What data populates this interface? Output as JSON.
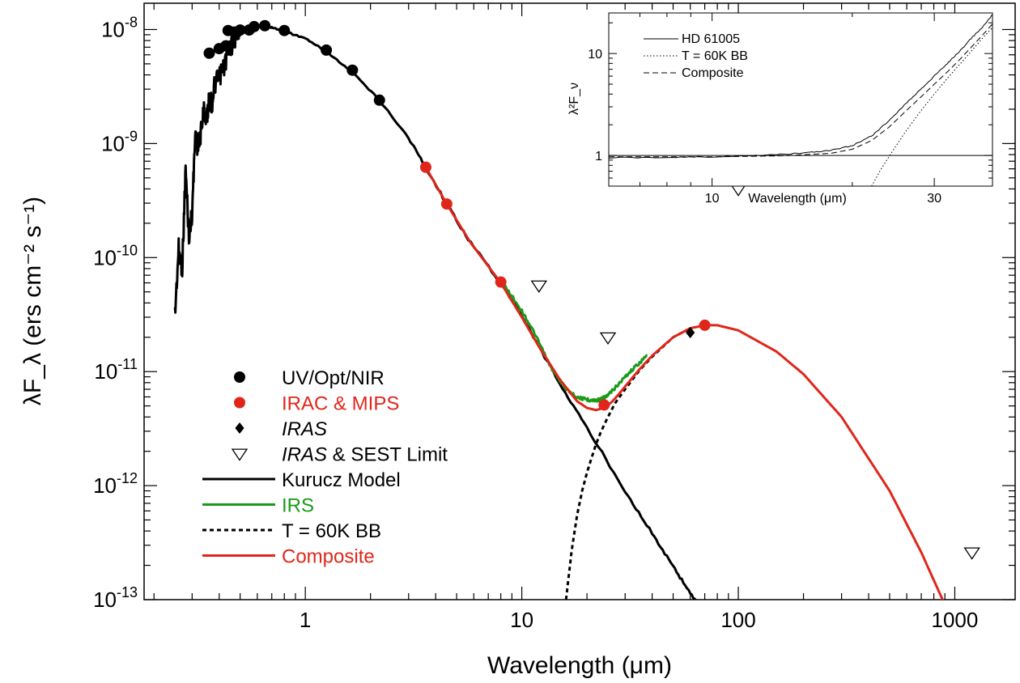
{
  "chart_data": [
    {
      "panel": "main",
      "type": "line",
      "xlabel": "Wavelength (μm)",
      "ylabel": "λF_λ (ers cm⁻² s⁻¹)",
      "xscale": "log",
      "yscale": "log",
      "xlim": [
        0.18,
        1900
      ],
      "ylim": [
        1e-13,
        1.7e-08
      ],
      "x_tick_values": [
        1,
        10,
        100,
        1000
      ],
      "x_tick_labels": [
        "1",
        "10",
        "100",
        "1000"
      ],
      "y_tick_values": [
        1e-13,
        1e-12,
        1e-11,
        1e-10,
        1e-09,
        1e-08
      ],
      "y_tick_labels": [
        {
          "base": "10",
          "exp": "-13"
        },
        {
          "base": "10",
          "exp": "-12"
        },
        {
          "base": "10",
          "exp": "-11"
        },
        {
          "base": "10",
          "exp": "-10"
        },
        {
          "base": "10",
          "exp": "-9"
        },
        {
          "base": "10",
          "exp": "-8"
        }
      ],
      "legend_position": "middle-left",
      "legend": [
        {
          "label": "UV/Opt/NIR",
          "marker": "circle",
          "color": "#000000"
        },
        {
          "label": "IRAC & MIPS",
          "marker": "circle",
          "color": "#e0261a"
        },
        {
          "label": "IRAS",
          "marker": "diamond",
          "color": "#000000",
          "italic": "IRAS"
        },
        {
          "label": "IRAS & SEST Limit",
          "marker": "triangle-down-open",
          "color": "#000000",
          "italic": "IRAS"
        },
        {
          "label": "Kurucz Model",
          "line": "solid",
          "color": "#000000"
        },
        {
          "label": "IRS",
          "line": "solid",
          "color": "#1a9a1a"
        },
        {
          "label": "T = 60K BB",
          "line": "dashed",
          "color": "#000000"
        },
        {
          "label": "Composite",
          "line": "solid",
          "color": "#e0261a"
        }
      ],
      "series": [
        {
          "name": "Kurucz Model",
          "style": "solid-noisy",
          "color": "#000000",
          "x": [
            0.25,
            0.26,
            0.27,
            0.28,
            0.29,
            0.3,
            0.31,
            0.32,
            0.33,
            0.34,
            0.35,
            0.36,
            0.37,
            0.38,
            0.4,
            0.42,
            0.44,
            0.46,
            0.48,
            0.5,
            0.55,
            0.6,
            0.65,
            0.7,
            0.8,
            1.0,
            1.25,
            1.65,
            2.2,
            3.0,
            3.6,
            4.5,
            5.8,
            8.0,
            10,
            15,
            20,
            30,
            40,
            50,
            60,
            70
          ],
          "y": [
            3.2e-11,
            1.2e-10,
            8e-11,
            6e-10,
            1.5e-10,
            2.5e-10,
            1.2e-09,
            9e-10,
            1.3e-09,
            2e-09,
            1.6e-09,
            2.5e-09,
            2.2e-09,
            3.2e-09,
            3.8e-09,
            4.6e-09,
            6.5e-09,
            7.5e-09,
            8.8e-09,
            9.8e-09,
            1.05e-08,
            1.08e-08,
            1.07e-08,
            1.04e-08,
            9.7e-09,
            8.3e-09,
            6.4e-09,
            4.2e-09,
            2.4e-09,
            1.12e-09,
            6.2e-10,
            2.95e-10,
            1.35e-10,
            6e-11,
            3.1e-11,
            7.8e-12,
            3.2e-12,
            9e-13,
            3.8e-13,
            1.95e-13,
            1.15e-13,
            7.3e-14
          ]
        },
        {
          "name": "IRS",
          "style": "solid-noisy",
          "color": "#1a9a1a",
          "x": [
            8,
            9,
            10,
            11,
            12,
            13,
            14,
            15,
            16,
            17,
            18,
            19,
            20,
            21,
            22,
            23,
            24,
            25,
            26,
            28,
            30,
            32,
            35,
            38
          ],
          "y": [
            6.2e-11,
            4.6e-11,
            3.4e-11,
            2.5e-11,
            1.8e-11,
            1.3e-11,
            1e-11,
            8.4e-12,
            7.1e-12,
            6.4e-12,
            6e-12,
            5.8e-12,
            5.7e-12,
            5.6e-12,
            5.6e-12,
            5.7e-12,
            5.9e-12,
            6.2e-12,
            6.7e-12,
            7.8e-12,
            9e-12,
            1.02e-11,
            1.2e-11,
            1.38e-11
          ]
        },
        {
          "name": "T = 60K BB",
          "style": "dashed",
          "color": "#000000",
          "x": [
            16,
            17,
            18,
            19,
            20,
            21,
            22,
            23,
            24,
            25,
            27,
            30,
            35,
            40,
            50,
            60
          ],
          "y": [
            1e-13,
            2.7e-13,
            5.5e-13,
            9e-13,
            1.3e-12,
            1.75e-12,
            2.3e-12,
            2.85e-12,
            3.4e-12,
            4e-12,
            5.3e-12,
            7e-12,
            1.03e-11,
            1.35e-11,
            2e-11,
            2.4e-11
          ]
        },
        {
          "name": "Composite",
          "style": "solid",
          "color": "#e0261a",
          "x": [
            3.6,
            4.5,
            5.8,
            8,
            10,
            12,
            15,
            18,
            20,
            22,
            24,
            26,
            28,
            30,
            35,
            40,
            50,
            60,
            70,
            80,
            100,
            150,
            200,
            300,
            500,
            700,
            900
          ],
          "y": [
            6.2e-10,
            2.95e-10,
            1.35e-10,
            6e-11,
            3e-11,
            1.65e-11,
            8.5e-12,
            5.5e-12,
            4.8e-12,
            4.6e-12,
            4.8e-12,
            5.4e-12,
            6.3e-12,
            7.4e-12,
            1.05e-11,
            1.38e-11,
            2e-11,
            2.4e-11,
            2.55e-11,
            2.55e-11,
            2.3e-11,
            1.5e-11,
            9.5e-12,
            4e-12,
            9e-13,
            2.6e-13,
            9e-14
          ]
        },
        {
          "name": "UV/Opt/NIR",
          "style": "markers",
          "marker": "circle",
          "color": "#000000",
          "x": [
            0.36,
            0.4,
            0.43,
            0.44,
            0.47,
            0.5,
            0.55,
            0.58,
            0.65,
            0.8,
            1.25,
            1.65,
            2.2
          ],
          "y": [
            6.2e-09,
            6.8e-09,
            7.2e-09,
            9.8e-09,
            9.5e-09,
            9.9e-09,
            9.9e-09,
            1.06e-08,
            1.08e-08,
            9.8e-09,
            6.6e-09,
            4.4e-09,
            2.4e-09
          ]
        },
        {
          "name": "IRAC & MIPS",
          "style": "markers",
          "marker": "circle",
          "color": "#e0261a",
          "x": [
            3.6,
            4.5,
            8.0,
            24,
            70
          ],
          "y": [
            6.2e-10,
            2.95e-10,
            6.1e-11,
            5.1e-12,
            2.55e-11
          ]
        },
        {
          "name": "IRAS",
          "style": "markers",
          "marker": "diamond",
          "color": "#000000",
          "x": [
            60
          ],
          "y": [
            2.2e-11
          ]
        },
        {
          "name": "IRAS & SEST Limit",
          "style": "markers",
          "marker": "triangle-down-open",
          "color": "#000000",
          "x": [
            12,
            25,
            100,
            1200
          ],
          "y": [
            5.7e-11,
            2e-11,
            4e-10,
            2.6e-13
          ]
        }
      ]
    },
    {
      "panel": "inset",
      "type": "line",
      "xlabel": "Wavelength (μm)",
      "ylabel": "λ²F_ν",
      "xscale": "log",
      "yscale": "log",
      "xlim": [
        6,
        40
      ],
      "ylim": [
        0.5,
        25
      ],
      "x_tick_values": [
        10,
        30
      ],
      "x_tick_labels": [
        "10",
        "30"
      ],
      "y_tick_values": [
        1,
        10
      ],
      "y_tick_labels": [
        "1",
        "10"
      ],
      "legend_position": "top-left",
      "legend": [
        {
          "label": "HD 61005",
          "line": "solid"
        },
        {
          "label": "T = 60K BB",
          "line": "dotted"
        },
        {
          "label": "Composite",
          "line": "dashed"
        }
      ],
      "series": [
        {
          "name": "HD 61005",
          "style": "solid-noisy",
          "color": "#000000",
          "x": [
            6,
            8,
            10,
            12,
            14,
            16,
            18,
            20,
            22,
            24,
            26,
            28,
            30,
            32,
            34,
            36,
            38,
            40
          ],
          "y": [
            0.95,
            0.96,
            0.97,
            0.99,
            1.02,
            1.06,
            1.12,
            1.25,
            1.55,
            2.2,
            3.2,
            4.4,
            6.0,
            8.0,
            10.5,
            14,
            18,
            24
          ]
        },
        {
          "name": "T = 60K BB",
          "style": "dotted",
          "color": "#000000",
          "x": [
            22,
            23,
            24,
            25,
            26,
            28,
            30,
            32,
            34,
            36,
            38,
            40
          ],
          "y": [
            0.5,
            0.72,
            0.98,
            1.3,
            1.7,
            2.7,
            4.0,
            5.7,
            7.8,
            10.5,
            14,
            18
          ]
        },
        {
          "name": "Composite",
          "style": "dashed",
          "color": "#000000",
          "x": [
            6,
            10,
            14,
            18,
            20,
            22,
            24,
            26,
            28,
            30,
            32,
            34,
            36,
            38,
            40
          ],
          "y": [
            0.97,
            0.97,
            0.99,
            1.05,
            1.15,
            1.4,
            1.9,
            2.7,
            3.7,
            5.0,
            6.6,
            8.7,
            11.5,
            15,
            19.5
          ]
        },
        {
          "name": "unity",
          "style": "solid",
          "color": "#000000",
          "x": [
            6,
            40
          ],
          "y": [
            1,
            1
          ]
        }
      ]
    }
  ]
}
